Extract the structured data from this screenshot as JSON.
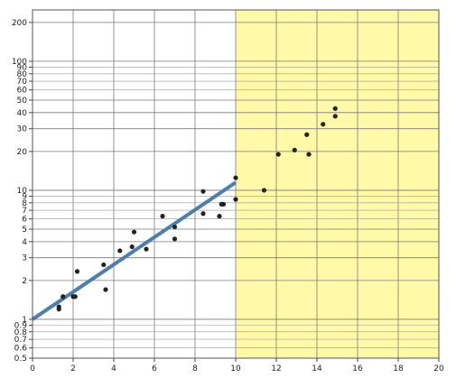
{
  "chart_data": {
    "type": "scatter",
    "title": "",
    "xlabel": "",
    "ylabel": "",
    "x_range": [
      0,
      20
    ],
    "y_range": [
      0.5,
      250
    ],
    "y_scale": "log",
    "grid": true,
    "x_ticks": [
      0,
      2,
      4,
      6,
      8,
      10,
      12,
      14,
      16,
      18,
      20
    ],
    "x_tick_labels": [
      "0",
      "2",
      "4",
      "6",
      "8",
      "10",
      "12",
      "14",
      "16",
      "18",
      "20"
    ],
    "y_major_ticks": [
      0.5,
      1,
      2,
      3,
      4,
      5,
      10,
      20,
      30,
      40,
      50,
      100,
      200
    ],
    "y_ticks": [
      0.5,
      0.6,
      0.7,
      0.8,
      0.9,
      1,
      2,
      3,
      4,
      5,
      6,
      7,
      8,
      9,
      10,
      20,
      30,
      40,
      50,
      60,
      70,
      80,
      90,
      100,
      200
    ],
    "y_tick_labels": [
      "0.5",
      "0.6",
      "0.7",
      "0.8",
      "0.9",
      "1",
      "2",
      "3",
      "4",
      "5",
      "6",
      "7",
      "8",
      "9",
      "10",
      "20",
      "30",
      "40",
      "50",
      "60",
      "70",
      "80",
      "90",
      "100",
      "200"
    ],
    "highlight_region": {
      "x_from": 10,
      "x_to": 20,
      "color": "#fff9a8"
    },
    "fit_line": {
      "x": [
        0,
        10
      ],
      "y": [
        1.0,
        11.5
      ],
      "color": "#4a7fb0"
    },
    "point_color": "#222222",
    "points": [
      {
        "x": 1.3,
        "y": 1.25
      },
      {
        "x": 1.3,
        "y": 1.2
      },
      {
        "x": 1.5,
        "y": 1.5
      },
      {
        "x": 2.0,
        "y": 1.5
      },
      {
        "x": 2.1,
        "y": 1.5
      },
      {
        "x": 2.2,
        "y": 2.35
      },
      {
        "x": 3.5,
        "y": 2.65
      },
      {
        "x": 3.6,
        "y": 1.7
      },
      {
        "x": 4.3,
        "y": 3.4
      },
      {
        "x": 4.9,
        "y": 3.65
      },
      {
        "x": 5.0,
        "y": 4.75
      },
      {
        "x": 5.6,
        "y": 3.5
      },
      {
        "x": 6.4,
        "y": 6.3
      },
      {
        "x": 7.0,
        "y": 5.2
      },
      {
        "x": 7.0,
        "y": 4.2
      },
      {
        "x": 8.4,
        "y": 9.8
      },
      {
        "x": 8.4,
        "y": 6.6
      },
      {
        "x": 9.2,
        "y": 6.3
      },
      {
        "x": 9.3,
        "y": 7.8
      },
      {
        "x": 9.4,
        "y": 7.8
      },
      {
        "x": 10.0,
        "y": 12.5
      },
      {
        "x": 10.0,
        "y": 8.5
      },
      {
        "x": 11.4,
        "y": 10.0
      },
      {
        "x": 12.1,
        "y": 19.0
      },
      {
        "x": 12.9,
        "y": 20.5
      },
      {
        "x": 13.5,
        "y": 27.0
      },
      {
        "x": 13.6,
        "y": 19.0
      },
      {
        "x": 14.3,
        "y": 32.5
      },
      {
        "x": 14.9,
        "y": 43.0
      },
      {
        "x": 14.9,
        "y": 37.5
      }
    ]
  }
}
